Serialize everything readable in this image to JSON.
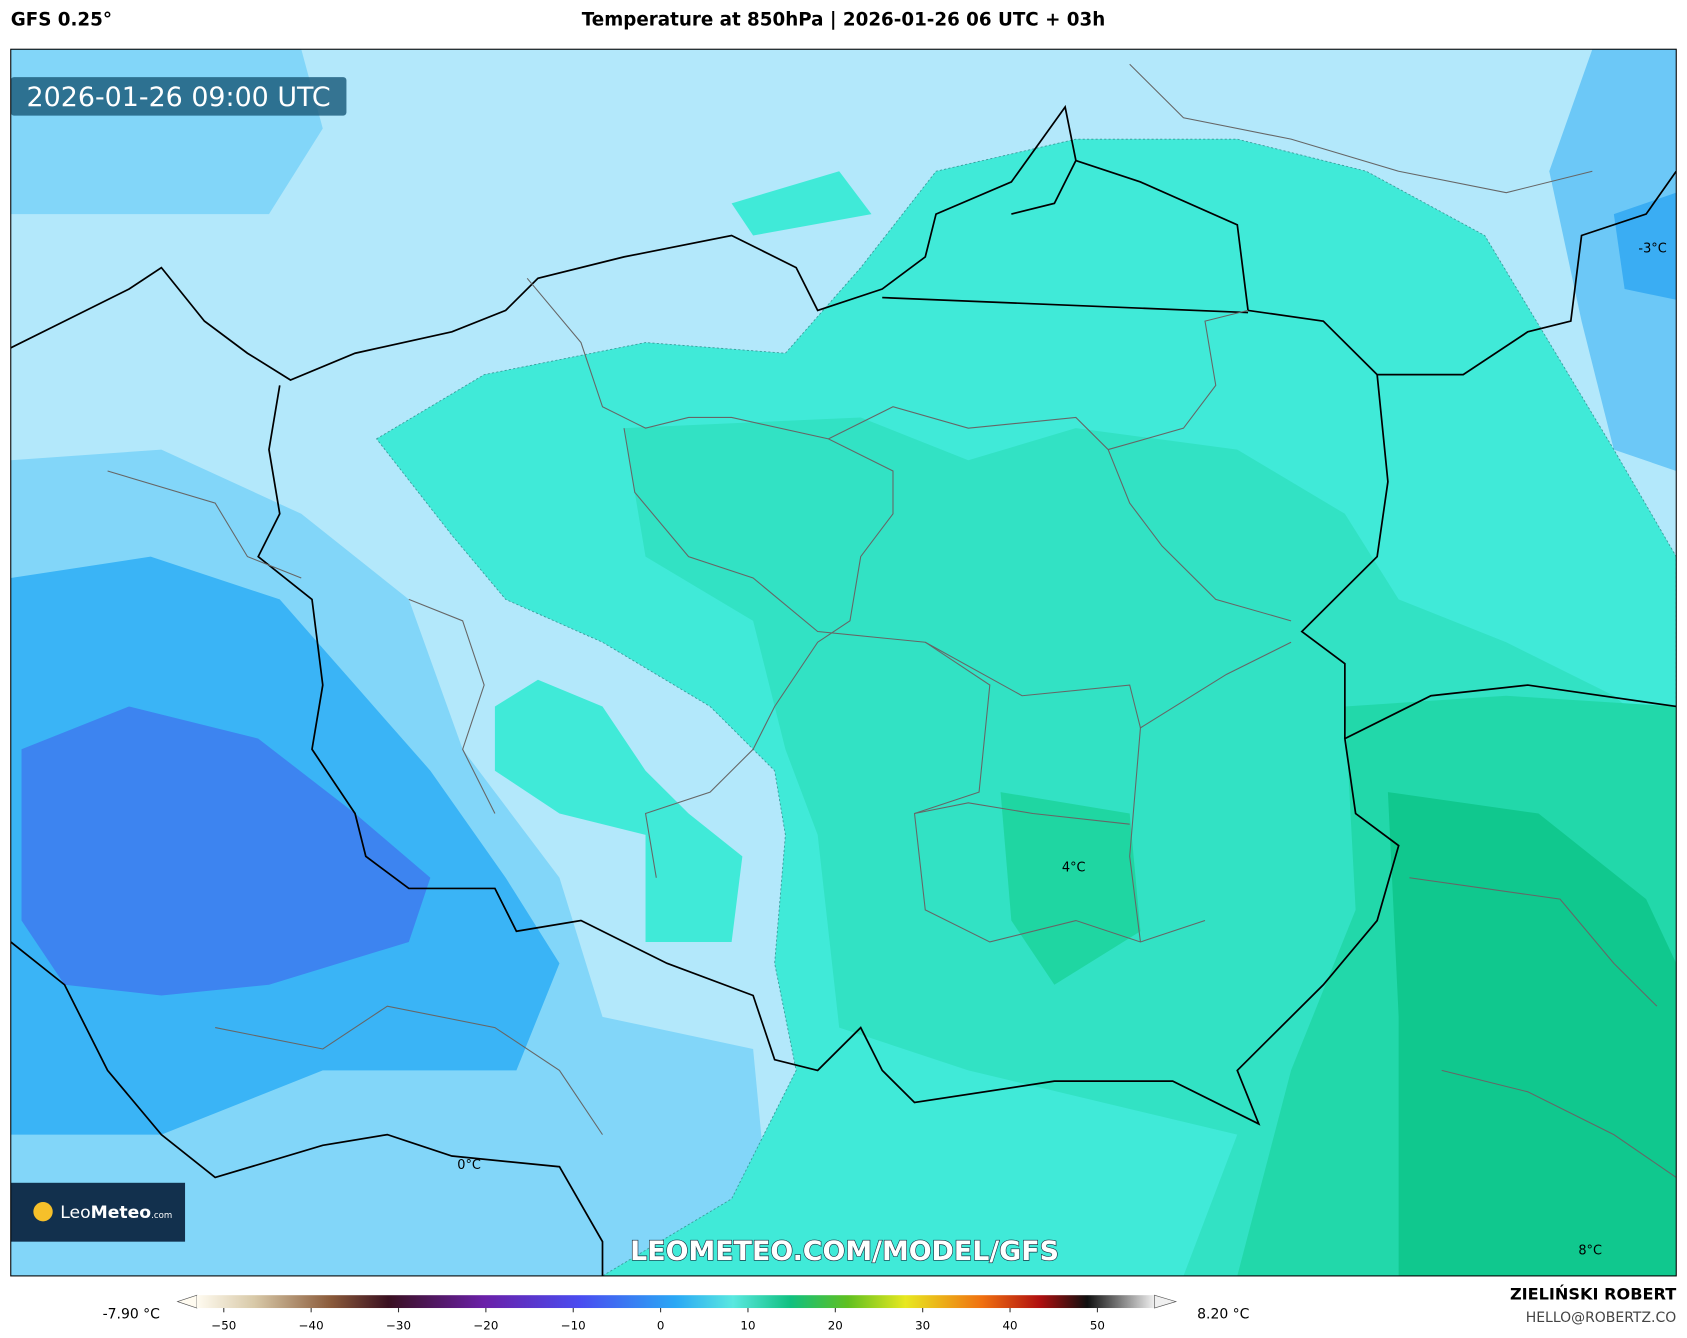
{
  "header": {
    "model": "GFS 0.25°",
    "title": "Temperature at 850hPa | 2026-01-26 06 UTC + 03h"
  },
  "map": {
    "timestamp": "2026-01-26 09:00 UTC",
    "labels": [
      "-3°C",
      "4°C",
      "0°C",
      "8°C"
    ],
    "watermark": "LEOMETEO.COM/MODEL/GFS",
    "logo": {
      "leo": "Leo",
      "meteo": "Meteo",
      "suffix": ".com"
    }
  },
  "colorbar": {
    "min": "-7.90 °C",
    "max": "8.20 °C",
    "ticks": [
      "−50",
      "−40",
      "−30",
      "−20",
      "−10",
      "0",
      "10",
      "20",
      "30",
      "40",
      "50"
    ]
  },
  "credit": {
    "name": "ZIELIŃSKI ROBERT",
    "email": "HELLO@ROBERTZ.CO"
  }
}
